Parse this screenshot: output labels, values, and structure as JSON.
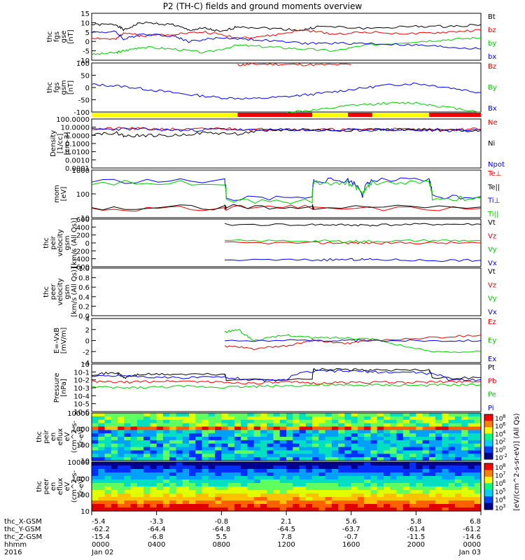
{
  "title": "P2 (TH-C) fields and ground moments overview",
  "colors": {
    "black": "#000000",
    "red": "#ee0000",
    "green": "#00cc00",
    "blue": "#0000ee",
    "yellow": "#ffff00",
    "barred": "#ee0000"
  },
  "chart_data": [
    {
      "type": "line",
      "panel": "fgs_gse",
      "ylabel": [
        "thc",
        "fgs",
        "gse",
        "[nT]"
      ],
      "ylim": [
        -10,
        15
      ],
      "yticks": [
        "15",
        "10",
        "5",
        "0",
        "-5",
        "-10"
      ],
      "legend": [
        "Bt",
        "bz",
        "by",
        "bx"
      ],
      "series": [
        {
          "name": "Bt",
          "x": [
            0,
            1.5,
            2,
            3,
            5,
            6,
            7,
            8,
            9,
            11,
            13,
            14,
            17,
            20,
            22,
            24
          ],
          "y": [
            9,
            9,
            6,
            10,
            9,
            6,
            7,
            5,
            8,
            7,
            6,
            8,
            7,
            8,
            8,
            9
          ]
        },
        {
          "name": "bz",
          "x": [
            0,
            1.5,
            2,
            3,
            5,
            7,
            9,
            11,
            13,
            15,
            17,
            20,
            22,
            24
          ],
          "y": [
            2,
            1,
            5,
            3,
            4,
            5,
            2,
            3,
            6,
            4,
            5,
            4,
            5,
            6
          ]
        },
        {
          "name": "by",
          "x": [
            0,
            1.5,
            2,
            3,
            5,
            7,
            9,
            11,
            13,
            15,
            17,
            20,
            22,
            24
          ],
          "y": [
            -7,
            -6,
            -5,
            -3,
            -4,
            -6,
            -2,
            -3,
            -4,
            -5,
            -2,
            0,
            1,
            2
          ]
        },
        {
          "name": "bx",
          "x": [
            0,
            1.5,
            2,
            3,
            5,
            6,
            8,
            10,
            13,
            15,
            17,
            20,
            22,
            24
          ],
          "y": [
            5,
            5,
            1,
            4,
            3,
            0,
            2,
            1,
            -1,
            -1,
            -1,
            -2,
            -3,
            -4
          ]
        }
      ]
    },
    {
      "type": "line",
      "panel": "fgs_gsm",
      "ylabel": [
        "thc",
        "fgs",
        "gsm",
        "[nT]"
      ],
      "ylim": [
        -140,
        100
      ],
      "yticks": [
        "100",
        "50",
        "0",
        "-50",
        "-100"
      ],
      "legend": [
        "Bz",
        "By",
        "Bx"
      ],
      "series": [
        {
          "name": "Bz",
          "x": [
            9,
            10,
            12,
            14,
            16
          ],
          "y": [
            90,
            95,
            93,
            91,
            92
          ]
        },
        {
          "name": "By",
          "x": [
            12,
            14,
            16,
            18,
            20,
            22,
            24
          ],
          "y": [
            -140,
            -130,
            -108,
            -98,
            -95,
            -118,
            -138
          ]
        },
        {
          "name": "Bx",
          "x": [
            0,
            2,
            4,
            6,
            8,
            10,
            12,
            14,
            16,
            18,
            20,
            22,
            24
          ],
          "y": [
            -5,
            -15,
            -35,
            -55,
            -70,
            -75,
            -65,
            -50,
            -30,
            -10,
            0,
            -20,
            -45
          ]
        }
      ]
    },
    {
      "type": "line",
      "panel": "density",
      "ylabel": [
        "Density",
        "[1/cc]",
        "[cm-3]"
      ],
      "ylim": [
        0.0001,
        100
      ],
      "scale": "log",
      "yticks": [
        "100.0000",
        "10.0000",
        "1.0000",
        "0.1000",
        "0.0100",
        "0.0010",
        "0.0001"
      ],
      "legend": [
        "Ne",
        "Ni",
        "Npot"
      ],
      "series": [
        {
          "name": "Ne",
          "x": [
            0,
            2,
            4,
            6,
            8,
            10,
            12,
            14,
            16,
            18,
            20,
            22,
            24
          ],
          "y": [
            6,
            7,
            6,
            5,
            7,
            5,
            6,
            5,
            5,
            6,
            5,
            5,
            6
          ]
        },
        {
          "name": "Ni",
          "x": [
            0,
            1.5,
            2,
            3,
            5,
            7,
            9,
            11,
            13,
            15,
            17,
            20,
            22,
            24
          ],
          "y": [
            1.5,
            2,
            0.8,
            1,
            0.9,
            2,
            1.5,
            4,
            5,
            4,
            5,
            5,
            4,
            4
          ]
        },
        {
          "name": "Npot",
          "x": [
            0,
            2,
            4,
            6,
            8,
            10,
            12,
            14,
            16,
            18,
            20,
            22,
            24
          ],
          "y": [
            5,
            6,
            5,
            4,
            6,
            4,
            5,
            4,
            4,
            5,
            4,
            4,
            5
          ]
        }
      ]
    },
    {
      "type": "line",
      "panel": "temperature",
      "ylabel": [
        "mom",
        "[eV]"
      ],
      "ylim": [
        3,
        5000
      ],
      "scale": "log",
      "yticks": [
        "1000",
        "100",
        "10"
      ],
      "legend": [
        "Te⊥",
        "Te||",
        "Ti⊥",
        "Ti||"
      ],
      "series": [
        {
          "name": "Te⊥",
          "x": [
            0,
            8.2,
            8.3,
            13.6,
            13.7,
            24
          ],
          "y": [
            12,
            12,
            14,
            15,
            12,
            13
          ]
        },
        {
          "name": "Te||",
          "x": [
            0,
            8.2,
            8.3,
            13.6,
            13.7,
            24
          ],
          "y": [
            15,
            15,
            16,
            18,
            15,
            16
          ]
        },
        {
          "name": "Ti⊥",
          "x": [
            0,
            8.2,
            8.3,
            13.6,
            13.7,
            15.8,
            16.7,
            17.3,
            20.8,
            21,
            24
          ],
          "y": [
            900,
            900,
            60,
            60,
            1000,
            1000,
            100,
            1000,
            1000,
            80,
            80
          ]
        },
        {
          "name": "Ti||",
          "x": [
            0,
            8.2,
            8.3,
            13.6,
            13.7,
            15.8,
            16.7,
            17.3,
            20.8,
            21,
            24
          ],
          "y": [
            700,
            700,
            40,
            40,
            700,
            700,
            80,
            700,
            700,
            60,
            60
          ]
        }
      ]
    },
    {
      "type": "line",
      "panel": "peir_velocity",
      "ylabel": [
        "thc",
        "peir",
        "velocity",
        "gsm",
        "[km/s (All Qs)]"
      ],
      "ylim": [
        -600,
        600
      ],
      "yticks": [
        "600",
        "400",
        "200",
        "0",
        "-200",
        "-400",
        "-600"
      ],
      "legend": [
        "Vt",
        "Vz",
        "Vy",
        "Vx"
      ],
      "series": [
        {
          "name": "Vt",
          "x": [
            8.2,
            13.6,
            15.8,
            17.3,
            20.8,
            24
          ],
          "y": [
            460,
            460,
            450,
            450,
            470,
            470
          ]
        },
        {
          "name": "Vz",
          "x": [
            8.2,
            13.6,
            15.8,
            17.3,
            20.8,
            24
          ],
          "y": [
            0,
            0,
            0,
            0,
            0,
            0
          ]
        },
        {
          "name": "Vy",
          "x": [
            8.2,
            13.6,
            15.8,
            17.3,
            20.8,
            24
          ],
          "y": [
            50,
            50,
            40,
            40,
            60,
            60
          ]
        },
        {
          "name": "Vx",
          "x": [
            8.2,
            13.6,
            15.8,
            17.3,
            20.8,
            24
          ],
          "y": [
            -430,
            -430,
            -420,
            -420,
            -440,
            -440
          ]
        }
      ]
    },
    {
      "type": "line",
      "panel": "peer_velocity",
      "ylabel": [
        "thc",
        "peer",
        "velocity",
        "gsm",
        "[km/s (All Qs)]"
      ],
      "ylim": [
        0,
        1
      ],
      "yticks": [
        "1.0",
        "0.8",
        "0.6",
        "0.4",
        "0.2",
        "0.0"
      ],
      "legend": [
        "Vt",
        "Vz",
        "Vy",
        "Vx"
      ],
      "series": []
    },
    {
      "type": "line",
      "panel": "efield",
      "ylabel": [
        "E=-VxB",
        "[mV/m]"
      ],
      "ylim": [
        -4,
        4
      ],
      "yticks": [
        "4",
        "2",
        "0",
        "-2",
        "-4"
      ],
      "legend": [
        "Ez",
        "Ey",
        "Ex"
      ],
      "series": [
        {
          "name": "Ez",
          "x": [
            8.2,
            10,
            12,
            13.6,
            15.8,
            17.3,
            20.8,
            24
          ],
          "y": [
            -1,
            -1.5,
            -1,
            0,
            -0.5,
            0,
            0.5,
            1
          ]
        },
        {
          "name": "Ey",
          "x": [
            8.2,
            9,
            10,
            12,
            13.6,
            15.8,
            17.3,
            20.8,
            24
          ],
          "y": [
            1.5,
            2,
            0,
            1,
            0.5,
            0.5,
            0.3,
            -2,
            -2
          ]
        },
        {
          "name": "Ex",
          "x": [
            8.2,
            13.6,
            15.8,
            17.3,
            20.8,
            24
          ],
          "y": [
            0,
            0,
            0,
            0,
            0,
            0
          ]
        }
      ]
    },
    {
      "type": "line",
      "panel": "pressure",
      "ylabel": [
        "Pressure",
        "[nPa]"
      ],
      "ylim": [
        1e-06,
        10
      ],
      "scale": "log",
      "yticks": [
        "10",
        "10-1",
        "10-2",
        "10-3",
        "10-4",
        "10-5",
        "10-6"
      ],
      "legend": [
        "Pt",
        "Pb",
        "Pe",
        "Pi"
      ],
      "series": [
        {
          "name": "Pt",
          "x": [
            0,
            1.5,
            2,
            3,
            5,
            8.2,
            8.3,
            13.6,
            13.7,
            15.8,
            17.3,
            20.8,
            21,
            24
          ],
          "y": [
            0.3,
            0.5,
            0.08,
            0.3,
            0.3,
            0.3,
            0.05,
            0.05,
            1.5,
            1.5,
            1.2,
            1.2,
            0.08,
            0.1
          ]
        },
        {
          "name": "Pb",
          "x": [
            0,
            2,
            4,
            6,
            8,
            10,
            12,
            14,
            16,
            18,
            20,
            22,
            24
          ],
          "y": [
            0.025,
            0.02,
            0.03,
            0.03,
            0.02,
            0.015,
            0.02,
            0.015,
            0.02,
            0.02,
            0.02,
            0.025,
            0.03
          ]
        },
        {
          "name": "Pe",
          "x": [
            0,
            2,
            4,
            6,
            8,
            10,
            12,
            14,
            16,
            18,
            20,
            22,
            24
          ],
          "y": [
            0.004,
            0.003,
            0.004,
            0.005,
            0.004,
            0.005,
            0.006,
            0.008,
            0.007,
            0.008,
            0.007,
            0.008,
            0.009
          ]
        },
        {
          "name": "Pi",
          "x": [
            0,
            2,
            4,
            6,
            8,
            10,
            12,
            14,
            16,
            18,
            20,
            22,
            24
          ],
          "y": [
            0.15,
            0.2,
            0.1,
            0.1,
            0.12,
            0.04,
            0.04,
            0.9,
            0.9,
            0.6,
            0.6,
            0.05,
            0.05
          ]
        }
      ]
    },
    {
      "type": "heatmap",
      "panel": "peir_spectrogram",
      "ylabel": [
        "thc",
        "peir",
        "en",
        "eflux",
        "eV",
        "(cm^2-s-",
        "sr-eV)"
      ],
      "ylim": [
        5,
        30000
      ],
      "scale": "log",
      "yticks": [
        "10000",
        "1000",
        "100",
        "10"
      ]
    },
    {
      "type": "heatmap",
      "panel": "peer_spectrogram",
      "ylabel": [
        "thc",
        "peer",
        "en",
        "eflux",
        "eV",
        "(cm^2-s-",
        "sr-eV)"
      ],
      "ylim": [
        5,
        30000
      ],
      "scale": "log",
      "yticks": [
        "10000",
        "1000",
        "100",
        "10"
      ]
    }
  ],
  "colorbar": {
    "label": "[eV/(cm^2-s-sr-eV)] (All Qs)",
    "ticks_top": [
      "10",
      "10",
      "10",
      "10",
      "10",
      "10"
    ],
    "exps_top": [
      "8",
      "6",
      "4",
      "2",
      "0",
      "-2"
    ],
    "ticks_bottom": [
      "10",
      "10",
      "10",
      "10",
      "10",
      "10"
    ],
    "exps_bottom": [
      "8",
      "7",
      "6",
      "5",
      "4",
      "3"
    ]
  },
  "xaxis": {
    "rows": [
      "thc_X-GSM",
      "thc_Y-GSM",
      "thc_Z-GSM",
      "hhmm",
      "2016"
    ],
    "ticks": [
      [
        "-5.4",
        "-3.3",
        "-0.8",
        "2.1",
        "5.6",
        "5.8",
        "6.8"
      ],
      [
        "-62.2",
        "-64.4",
        "-64.8",
        "-64.5",
        "-63.7",
        "-61.4",
        "-61.2"
      ],
      [
        "-15.4",
        "-6.8",
        "5.5",
        "7.8",
        "-0.7",
        "-11.5",
        "-14.6"
      ],
      [
        "0000",
        "0400",
        "0800",
        "1200",
        "1600",
        "2000",
        "0000"
      ],
      [
        "Jan 02",
        "",
        "",
        "",
        "",
        "",
        "Jan 03"
      ]
    ]
  }
}
